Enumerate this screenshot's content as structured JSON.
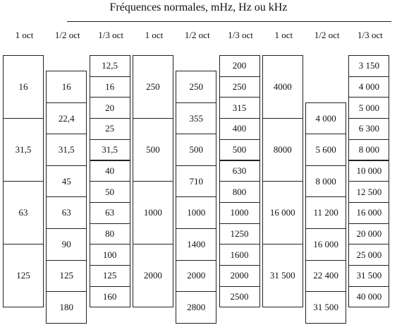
{
  "header": {
    "title": "Fréquences normales, mHz, Hz ou kHz",
    "columns": [
      "1 oct",
      "1/2 oct",
      "1/3 oct",
      "1 oct",
      "1/2 oct",
      "1/3 oct",
      "1 oct",
      "1/2 oct",
      "1/3 oct"
    ]
  },
  "groups": [
    {
      "octave": [
        "16",
        "31,5",
        "63",
        "125"
      ],
      "half_octave": [
        "16",
        "22,4",
        "31,5",
        "45",
        "63",
        "90",
        "125",
        "180"
      ],
      "third_octave": [
        "12,5",
        "16",
        "20",
        "25",
        "31,5",
        "40",
        "50",
        "63",
        "80",
        "100",
        "125",
        "160"
      ]
    },
    {
      "octave": [
        "250",
        "500",
        "1000",
        "2000"
      ],
      "half_octave": [
        "250",
        "355",
        "500",
        "710",
        "1000",
        "1400",
        "2000",
        "2800"
      ],
      "third_octave": [
        "200",
        "250",
        "315",
        "400",
        "500",
        "630",
        "800",
        "1000",
        "1250",
        "1600",
        "2000",
        "2500"
      ]
    },
    {
      "octave": [
        "4000",
        "8000",
        "16 000",
        "31 500"
      ],
      "half_octave": [
        "4 000",
        "5 600",
        "8 000",
        "11 200",
        "16 000",
        "22 400",
        "31 500"
      ],
      "third_octave": [
        "3 150",
        "4 000",
        "5 000",
        "6 300",
        "8 000",
        "10 000",
        "12 500",
        "16 000",
        "20 000",
        "25 000",
        "31 500",
        "40 000"
      ]
    }
  ]
}
